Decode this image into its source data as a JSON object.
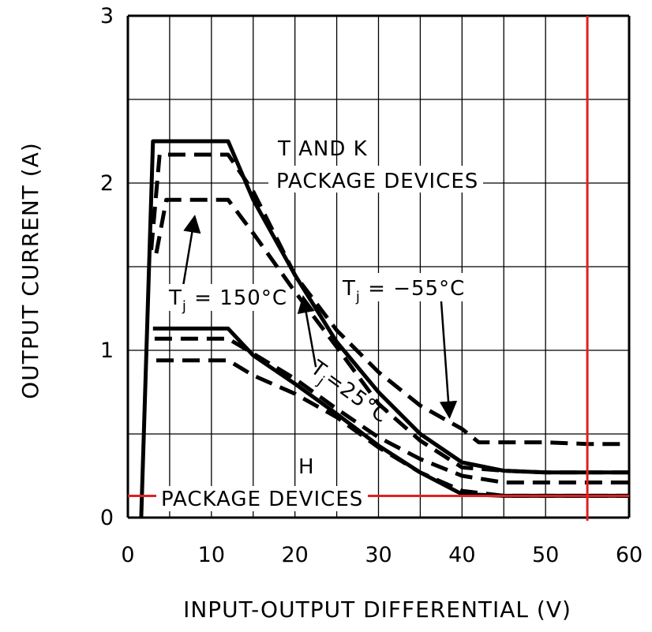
{
  "chart_data": {
    "type": "line",
    "xlabel": "INPUT-OUTPUT DIFFERENTIAL (V)",
    "ylabel": "OUTPUT CURRENT (A)",
    "xlim": [
      0,
      60
    ],
    "ylim": [
      0,
      3
    ],
    "x_ticks": [
      "0",
      "10",
      "20",
      "30",
      "40",
      "50",
      "60"
    ],
    "y_ticks": [
      "0",
      "1",
      "2",
      "3"
    ],
    "grid": true,
    "annotations": {
      "tk_line1": "T AND K",
      "tk_line2": "PACKAGE DEVICES",
      "h_line1": "H",
      "h_line2": "PACKAGE DEVICES",
      "t150_main": "T",
      "t150_sub": "j",
      "t150_rest": " = 150°C",
      "t55_main": "T",
      "t55_sub": "j",
      "t55_rest": " = −55°C",
      "t25_main": "T",
      "t25_sub": "j",
      "t25_rest": "=25°C"
    },
    "series": [
      {
        "group": "T and K package",
        "style": "solid",
        "x": [
          1.6,
          3,
          12,
          15,
          20,
          25,
          30,
          35,
          40,
          45,
          50,
          55,
          60
        ],
        "y": [
          0,
          2.25,
          2.25,
          1.9,
          1.45,
          1.05,
          0.75,
          0.5,
          0.33,
          0.28,
          0.27,
          0.27,
          0.27
        ]
      },
      {
        "group": "T and K package",
        "style": "dashed",
        "x": [
          2.8,
          3.8,
          12,
          15,
          20,
          25,
          30,
          35,
          40,
          42,
          50,
          55,
          60
        ],
        "y": [
          1.6,
          2.17,
          2.17,
          1.95,
          1.45,
          1.12,
          0.87,
          0.67,
          0.53,
          0.45,
          0.45,
          0.44,
          0.44
        ]
      },
      {
        "group": "T and K package",
        "style": "dashed",
        "x": [
          3.4,
          4.6,
          12,
          15,
          20,
          25,
          30,
          35,
          40,
          45,
          50,
          55,
          60
        ],
        "y": [
          1.58,
          1.9,
          1.9,
          1.7,
          1.35,
          1.02,
          0.68,
          0.46,
          0.3,
          0.28,
          0.27,
          0.27,
          0.27
        ]
      },
      {
        "group": "H package",
        "style": "solid",
        "x": [
          3,
          12,
          15,
          20,
          25,
          30,
          35,
          40,
          45,
          50,
          55,
          60
        ],
        "y": [
          1.13,
          1.13,
          0.97,
          0.8,
          0.62,
          0.43,
          0.27,
          0.14,
          0.13,
          0.13,
          0.13,
          0.13
        ]
      },
      {
        "group": "H package",
        "style": "dashed",
        "x": [
          3.2,
          12,
          15,
          20,
          25,
          30,
          35,
          40,
          45,
          50,
          55,
          60
        ],
        "y": [
          1.07,
          1.07,
          0.98,
          0.83,
          0.65,
          0.48,
          0.35,
          0.25,
          0.21,
          0.21,
          0.21,
          0.21
        ]
      },
      {
        "group": "H package",
        "style": "dashed",
        "x": [
          3.4,
          12,
          15,
          20,
          25,
          30,
          35,
          40,
          45,
          50,
          55,
          60
        ],
        "y": [
          0.94,
          0.94,
          0.85,
          0.74,
          0.6,
          0.42,
          0.27,
          0.16,
          0.13,
          0.13,
          0.13,
          0.13
        ]
      }
    ],
    "reference_lines": [
      {
        "orientation": "vertical",
        "x": 55,
        "color": "#e02020"
      },
      {
        "orientation": "horizontal",
        "y": 0.13,
        "color": "#e02020"
      }
    ],
    "arrows": [
      {
        "label": "Tj = 150°C",
        "from": [
          6.5,
          1.35
        ],
        "to": [
          8,
          1.8
        ]
      },
      {
        "label": "Tj = 25°C",
        "from": [
          22.5,
          0.9
        ],
        "to": [
          21,
          1.32
        ]
      },
      {
        "label": "Tj = -55°C",
        "from": [
          37.5,
          1.3
        ],
        "to": [
          38.5,
          0.6
        ]
      }
    ]
  }
}
